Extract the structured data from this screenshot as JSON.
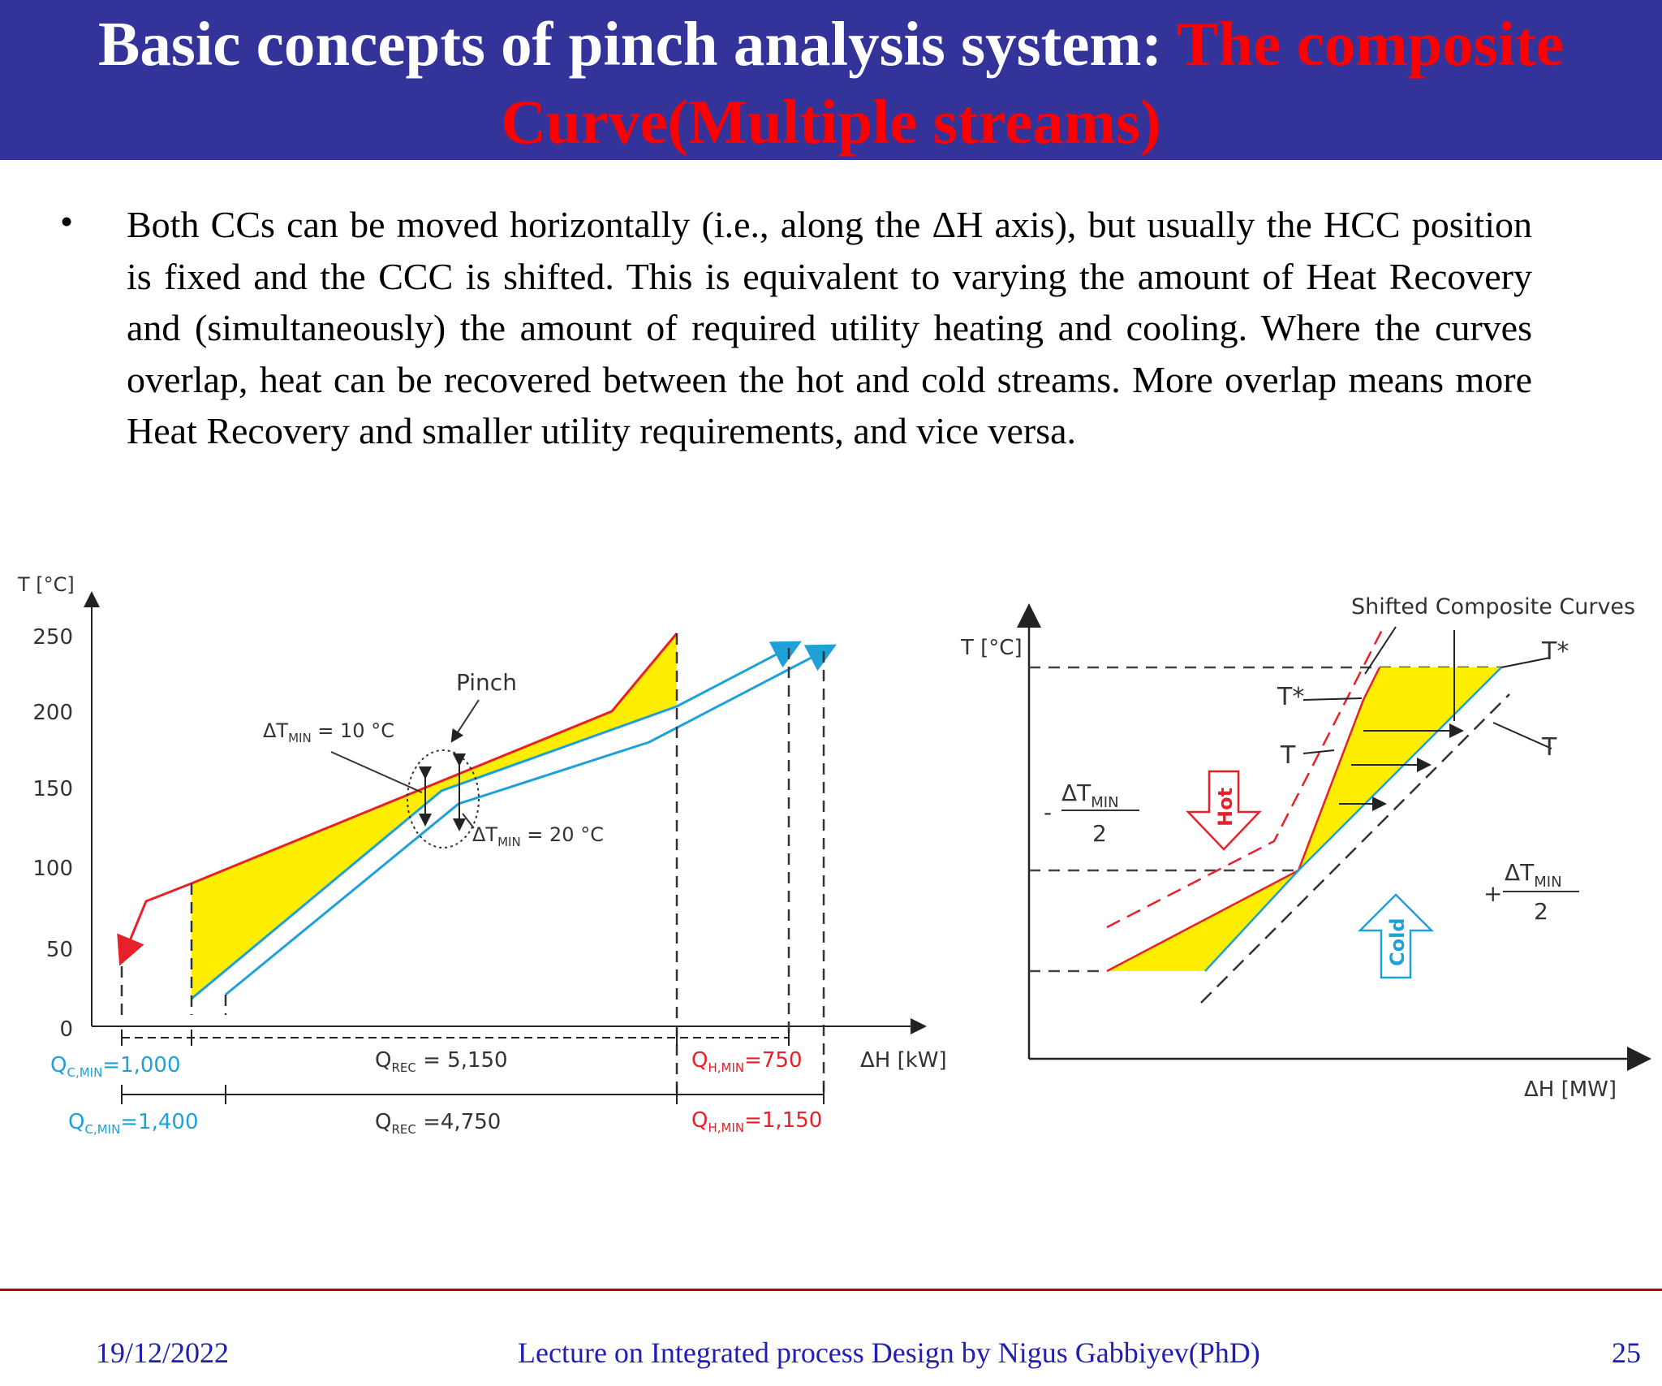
{
  "slide": {
    "title_main": "Basic concepts of pinch analysis system: ",
    "title_accent": "The composite Curve(Multiple streams)",
    "bullet_symbol": "•",
    "bullet_text": "Both CCs can be moved horizontally (i.e., along the ΔH axis), but usually the HCC position is fixed and the CCC is shifted. This is equivalent to varying the amount of Heat Recovery and (simultaneously) the amount of required utility heating and cooling. Where the curves overlap, heat can be recovered between the hot and cold streams. More overlap means more Heat Recovery and smaller utility requirements, and vice versa."
  },
  "figure_left": {
    "y_axis_label": "T [°C]",
    "x_axis_label": "ΔH [kW]",
    "y_ticks": [
      "250",
      "200",
      "150",
      "100",
      "50",
      "0"
    ],
    "pinch_label": "Pinch",
    "dtmin_small": {
      "prefix": "ΔT",
      "sub": "MIN",
      "suffix": " = 10 °C"
    },
    "dtmin_large": {
      "prefix": "ΔT",
      "sub": "MIN",
      "suffix": " = 20 °C"
    },
    "row1": {
      "qc": {
        "prefix": "Q",
        "sub": "C,MIN",
        "suffix": "=1,000"
      },
      "qrec": {
        "prefix": "Q",
        "sub": "REC",
        "suffix": " = 5,150"
      },
      "qh": {
        "prefix": "Q",
        "sub": "H,MIN",
        "suffix": "=750"
      }
    },
    "row2": {
      "qc": {
        "prefix": "Q",
        "sub": "C,MIN",
        "suffix": "=1,400"
      },
      "qrec": {
        "prefix": "Q",
        "sub": "REC",
        "suffix": " =4,750"
      },
      "qh": {
        "prefix": "Q",
        "sub": "H,MIN",
        "suffix": "=1,150"
      }
    },
    "colors": {
      "hot": "#e8202a",
      "cold": "#1ea0d8",
      "overlap": "#ffee00"
    }
  },
  "figure_right": {
    "title": "Shifted Composite Curves",
    "y_axis_label": "T [°C]",
    "x_axis_label": "ΔH [MW]",
    "t_star_label": "T*",
    "t_label": "T",
    "t_star_mid_label": "T*",
    "t_mid_label": "T",
    "hot_label": "Hot",
    "cold_label": "Cold",
    "minus_dt": {
      "sign": "-",
      "num": "ΔT",
      "sub": "MIN",
      "den": "2"
    },
    "plus_dt": {
      "sign": "+",
      "num": "ΔT",
      "sub": "MIN",
      "den": "2"
    }
  },
  "footer": {
    "date": "19/12/2022",
    "lecture": "Lecture on Integrated process Design by Nigus Gabbiyev(PhD)",
    "page": "25"
  }
}
